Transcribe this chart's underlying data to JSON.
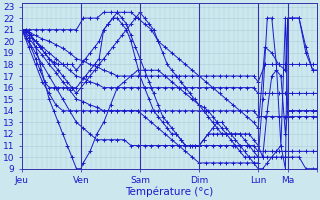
{
  "xlabel": "Température (°c)",
  "xlim": [
    0,
    130
  ],
  "ylim": [
    9,
    23.3
  ],
  "yticks": [
    9,
    10,
    11,
    12,
    13,
    14,
    15,
    16,
    17,
    18,
    19,
    20,
    21,
    22,
    23
  ],
  "xtick_positions": [
    0,
    26,
    52,
    78,
    104,
    117,
    130
  ],
  "xtick_labels": [
    "Jeu",
    "Ven",
    "Sam",
    "Dim",
    "Lun",
    "Ma",
    ""
  ],
  "background_color": "#cce8ee",
  "grid_color": "#aacdd8",
  "line_color": "#1a1acc",
  "vlines": [
    26,
    52,
    78,
    104,
    117
  ],
  "series": [
    {
      "x": [
        0,
        3,
        6,
        9,
        12,
        15,
        18,
        21,
        24,
        27,
        30,
        33,
        36,
        39,
        42,
        45,
        48,
        51,
        54,
        57,
        60,
        63,
        66,
        69,
        72,
        75,
        78,
        81,
        84,
        87,
        90,
        93,
        96,
        99,
        102,
        104,
        107,
        110,
        113,
        116,
        117,
        119,
        122,
        125,
        128,
        130
      ],
      "y": [
        21,
        21,
        21,
        21,
        21,
        21,
        21,
        21,
        21,
        22,
        22,
        22,
        22.5,
        22.5,
        22.5,
        22.5,
        22.5,
        22,
        21.5,
        21,
        20,
        19.5,
        19,
        18.5,
        18,
        17.5,
        17,
        16.5,
        16,
        15.5,
        15,
        14.5,
        14,
        13.5,
        13,
        12.5,
        19.5,
        19,
        18,
        17.5,
        22,
        22,
        22,
        19.5,
        17.5,
        17.5
      ]
    },
    {
      "x": [
        0,
        3,
        6,
        9,
        12,
        15,
        18,
        21,
        24,
        27,
        30,
        33,
        36,
        39,
        42,
        45,
        48,
        51,
        54,
        57,
        60,
        63,
        66,
        69,
        72,
        75,
        78,
        81,
        84,
        87,
        90,
        93,
        96,
        99,
        102,
        104,
        107,
        110,
        113,
        116,
        117,
        119,
        122,
        125,
        128,
        130
      ],
      "y": [
        21,
        20.8,
        20.5,
        20.2,
        20,
        19.7,
        19.4,
        19,
        18.5,
        18.3,
        18,
        17.8,
        17.5,
        17.3,
        17,
        17,
        17,
        17,
        17,
        17,
        17,
        17,
        17,
        17,
        17,
        17,
        17,
        17,
        17,
        17,
        17,
        17,
        17,
        17,
        17,
        16.5,
        18,
        18,
        18,
        18,
        18,
        18,
        18,
        18,
        18,
        18
      ]
    },
    {
      "x": [
        0,
        3,
        6,
        9,
        12,
        15,
        18,
        21,
        24,
        27,
        30,
        33,
        36,
        39,
        42,
        45,
        48,
        51,
        54,
        57,
        60,
        63,
        66,
        69,
        72,
        75,
        78,
        81,
        84,
        87,
        90,
        93,
        96,
        99,
        102,
        104,
        107,
        110,
        113,
        116,
        117,
        119,
        122,
        125,
        128,
        130
      ],
      "y": [
        21,
        20.5,
        20,
        19.5,
        19,
        18.5,
        18,
        17.5,
        17,
        16.8,
        16.5,
        16.3,
        16,
        16,
        16,
        16,
        16,
        16,
        16,
        16,
        16,
        16,
        16,
        16,
        16,
        16,
        16,
        16,
        16,
        16,
        16,
        16,
        16,
        16,
        16,
        15.5,
        15.5,
        15.5,
        15.5,
        15.5,
        15.5,
        15.5,
        15.5,
        15.5,
        15.5,
        15.5
      ]
    },
    {
      "x": [
        0,
        3,
        6,
        9,
        12,
        15,
        18,
        21,
        24,
        27,
        30,
        33,
        36,
        39,
        42,
        45,
        48,
        51,
        54,
        57,
        60,
        63,
        66,
        69,
        72,
        75,
        78,
        81,
        84,
        87,
        90,
        93,
        96,
        99,
        102,
        104,
        107,
        110,
        113,
        116,
        117,
        119,
        122,
        125,
        128,
        130
      ],
      "y": [
        21,
        20.3,
        19.5,
        18.8,
        18,
        17.3,
        16.5,
        15.8,
        15,
        14.8,
        14.5,
        14.3,
        14,
        14,
        14,
        14,
        14,
        14,
        14,
        14,
        14,
        14,
        14,
        14,
        14,
        14,
        14,
        14,
        14,
        14,
        14,
        14,
        14,
        14,
        14,
        13.5,
        13.5,
        13.5,
        13.5,
        13.5,
        13.5,
        13.5,
        13.5,
        13.5,
        13.5,
        13.5
      ]
    },
    {
      "x": [
        0,
        3,
        6,
        9,
        12,
        15,
        18,
        21,
        24,
        27,
        30,
        33,
        36,
        39,
        42,
        45,
        48,
        51,
        54,
        57,
        60,
        63,
        66,
        69,
        72,
        75,
        78,
        81,
        84,
        87,
        90,
        93,
        96,
        99,
        102,
        104,
        107,
        110,
        113,
        116,
        117,
        119,
        122,
        125,
        128,
        130
      ],
      "y": [
        21,
        20,
        19,
        18,
        17,
        16,
        15,
        14,
        13,
        12.5,
        12,
        11.5,
        11.5,
        11.5,
        11.5,
        11.5,
        11,
        11,
        11,
        11,
        11,
        11,
        11,
        11,
        11,
        11,
        11,
        11,
        11,
        11,
        11,
        11,
        11,
        11,
        11,
        10.5,
        10.5,
        10.5,
        10.5,
        10.5,
        10.5,
        10.5,
        10.5,
        10.5,
        10.5,
        10.5
      ]
    },
    {
      "x": [
        0,
        3,
        6,
        9,
        12,
        15,
        18,
        21,
        24,
        27,
        30,
        33,
        36,
        39,
        42,
        45,
        48,
        51,
        54,
        57,
        60,
        63,
        66,
        69,
        72,
        75,
        78,
        81,
        84,
        87,
        90,
        93,
        96,
        99,
        102,
        104
      ],
      "y": [
        21,
        19.5,
        18,
        16.5,
        15.5,
        14.5,
        14,
        14,
        14,
        14,
        14,
        14,
        14,
        14,
        14,
        14,
        14,
        14,
        13.5,
        13,
        12.5,
        12,
        11.5,
        11,
        10.5,
        10,
        9.5,
        9.5,
        9.5,
        9.5,
        9.5,
        9.5,
        9.5,
        9.5,
        9.5,
        9.5
      ]
    },
    {
      "x": [
        0,
        2,
        4,
        6,
        8,
        10,
        12,
        14,
        16,
        18,
        20,
        22,
        24,
        26,
        28,
        30,
        32,
        34,
        36,
        38,
        40,
        42,
        44,
        46,
        48,
        50,
        52,
        54,
        56,
        58,
        60,
        62,
        64,
        66,
        68,
        70,
        72,
        74,
        76,
        78,
        80,
        82,
        84,
        86,
        88,
        90,
        92,
        94,
        96,
        98,
        100,
        102,
        104,
        106,
        108,
        110,
        112,
        114,
        116,
        117,
        119,
        122,
        125,
        128,
        130
      ],
      "y": [
        21,
        20.3,
        19.5,
        18.5,
        17.5,
        16.5,
        16,
        16,
        16,
        16,
        16,
        16,
        16,
        16.5,
        17,
        17.5,
        18,
        18.5,
        21,
        21.5,
        22,
        22,
        21.5,
        21,
        20,
        18.5,
        17,
        16,
        15,
        14,
        13.5,
        13,
        12.5,
        12,
        12,
        11.5,
        11,
        11,
        11,
        11,
        11.5,
        12,
        12,
        12,
        12,
        12,
        12,
        12,
        12,
        12,
        12,
        11.5,
        11,
        10,
        14,
        17,
        17.5,
        17,
        12,
        14,
        14,
        14,
        14,
        14,
        14
      ]
    },
    {
      "x": [
        0,
        2,
        4,
        6,
        8,
        10,
        12,
        14,
        16,
        18,
        20,
        22,
        24,
        26,
        28,
        30,
        32,
        34,
        36,
        38,
        40,
        42,
        44,
        46,
        48,
        50,
        52,
        54,
        56,
        58,
        60,
        62,
        64,
        66,
        68,
        70,
        72,
        74,
        76,
        78,
        80,
        82,
        84,
        86,
        88,
        90,
        92,
        94,
        96,
        98,
        100,
        102,
        104,
        106,
        108,
        110,
        112,
        114,
        116,
        117,
        119,
        122,
        125,
        128,
        130
      ],
      "y": [
        21,
        20.8,
        20.5,
        20,
        19.5,
        19,
        18.5,
        18.2,
        18,
        18,
        18,
        18,
        17.5,
        18,
        18.5,
        19,
        19.5,
        20,
        21,
        21.5,
        22,
        22.5,
        22,
        21.5,
        20.5,
        19.5,
        18.5,
        17.5,
        16.5,
        15.5,
        14.5,
        13.5,
        13,
        12.5,
        12,
        11.5,
        11,
        11,
        11,
        11,
        11.5,
        12,
        12.5,
        13,
        13,
        12.5,
        12,
        11.5,
        11,
        10.5,
        10,
        9.5,
        9,
        9,
        9.5,
        10,
        10.5,
        11,
        9,
        22,
        22,
        22,
        19,
        17.5,
        17.5
      ]
    },
    {
      "x": [
        0,
        2,
        4,
        6,
        8,
        10,
        12,
        14,
        16,
        18,
        20,
        22,
        24,
        26,
        27,
        30,
        33,
        36,
        39,
        42,
        45,
        48,
        51,
        54,
        57,
        60,
        63,
        66,
        69,
        72,
        75,
        78,
        80,
        82,
        84,
        86,
        88,
        90,
        92,
        94,
        96,
        98,
        100,
        102,
        104,
        106,
        108,
        110,
        112,
        114,
        116,
        117,
        119,
        122,
        125,
        128,
        130
      ],
      "y": [
        21,
        21,
        20.5,
        19.5,
        18,
        16.5,
        15,
        14,
        13,
        12,
        11,
        10,
        9,
        9,
        9.5,
        10.5,
        12,
        13,
        14.5,
        16,
        16.5,
        17,
        17.5,
        17.5,
        17.5,
        17.5,
        17,
        16.5,
        16,
        15.5,
        15,
        14.5,
        14.3,
        14,
        13.5,
        13,
        12.5,
        12,
        11.5,
        11,
        10.5,
        10,
        10,
        10,
        10,
        10,
        10,
        10,
        10,
        10,
        10,
        10,
        10,
        10,
        9,
        9,
        9
      ]
    },
    {
      "x": [
        0,
        2,
        4,
        6,
        8,
        10,
        12,
        14,
        16,
        18,
        20,
        22,
        24,
        26,
        28,
        30,
        32,
        34,
        36,
        38,
        40,
        42,
        44,
        46,
        48,
        50,
        52,
        54,
        56,
        58,
        60,
        62,
        64,
        66,
        68,
        70,
        72,
        74,
        76,
        78,
        80,
        82,
        84,
        86,
        88,
        90,
        92,
        94,
        96,
        98,
        100,
        102,
        104,
        106,
        108,
        110,
        112,
        114,
        116,
        117,
        119,
        122,
        125,
        128,
        130
      ],
      "y": [
        21,
        21,
        20.5,
        20,
        19.5,
        19,
        18.5,
        18,
        17.5,
        17,
        16.5,
        16,
        15.5,
        16,
        16.5,
        17,
        17.5,
        18,
        18.5,
        19,
        19.5,
        20,
        20.5,
        21,
        21.5,
        22,
        22.5,
        22,
        21.5,
        21,
        20,
        19,
        18,
        17.5,
        17,
        16.5,
        16,
        15.5,
        15,
        14.5,
        14,
        13.5,
        13,
        12.5,
        12,
        12,
        12,
        12,
        12,
        11.5,
        11,
        10.5,
        10,
        15,
        22,
        22,
        18,
        11,
        22,
        14,
        14,
        14,
        14,
        14,
        14
      ]
    }
  ]
}
